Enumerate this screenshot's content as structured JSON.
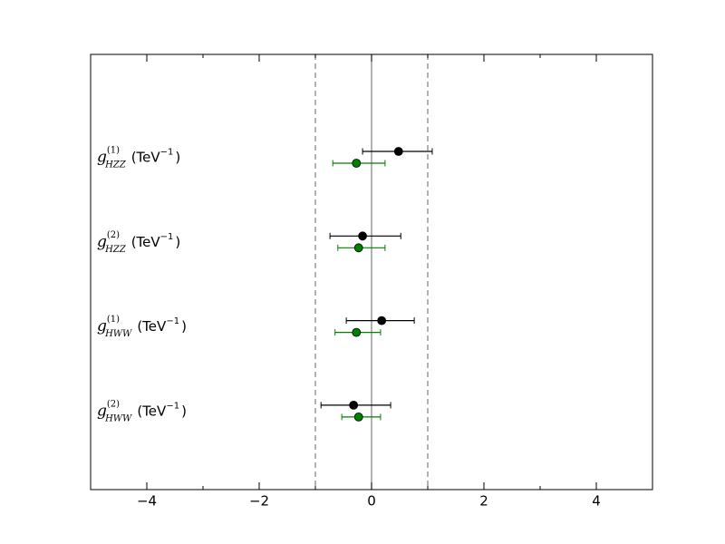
{
  "chart_data": {
    "type": "errorbar",
    "categories": [
      {
        "base": "g",
        "sup": "(1)",
        "sub": "HZZ",
        "unit": "(TeV",
        "unit_exp": "−1",
        "close": ")"
      },
      {
        "base": "g",
        "sup": "(2)",
        "sub": "HZZ",
        "unit": "(TeV",
        "unit_exp": "−1",
        "close": ")"
      },
      {
        "base": "g",
        "sup": "(1)",
        "sub": "HWW",
        "unit": "(TeV",
        "unit_exp": "−1",
        "close": ")"
      },
      {
        "base": "g",
        "sup": "(2)",
        "sub": "HWW",
        "unit": "(TeV",
        "unit_exp": "−1",
        "close": ")"
      }
    ],
    "series": [
      {
        "color": "#000000",
        "values": [
          0.48,
          -0.16,
          0.18,
          -0.32
        ],
        "lower": [
          -0.16,
          -0.74,
          -0.45,
          -0.9
        ],
        "upper": [
          1.08,
          0.52,
          0.76,
          0.34
        ]
      },
      {
        "color": "#008000",
        "values": [
          -0.27,
          -0.23,
          -0.27,
          -0.23
        ],
        "lower": [
          -0.69,
          -0.6,
          -0.65,
          -0.53
        ],
        "upper": [
          0.24,
          0.24,
          0.16,
          0.16
        ]
      }
    ],
    "xlim": [
      -5,
      5
    ],
    "xticks": [
      {
        "value": -4,
        "label": "−4"
      },
      {
        "value": -2,
        "label": "−2"
      },
      0,
      2,
      4
    ],
    "xminorticks": [
      -5,
      -3,
      -1,
      1,
      3,
      5
    ],
    "vlines": [
      {
        "x": -1,
        "dashed": true,
        "color": "#808080"
      },
      {
        "x": 0,
        "dashed": false,
        "color": "#808080"
      },
      {
        "x": 1,
        "dashed": true,
        "color": "#808080"
      }
    ]
  }
}
